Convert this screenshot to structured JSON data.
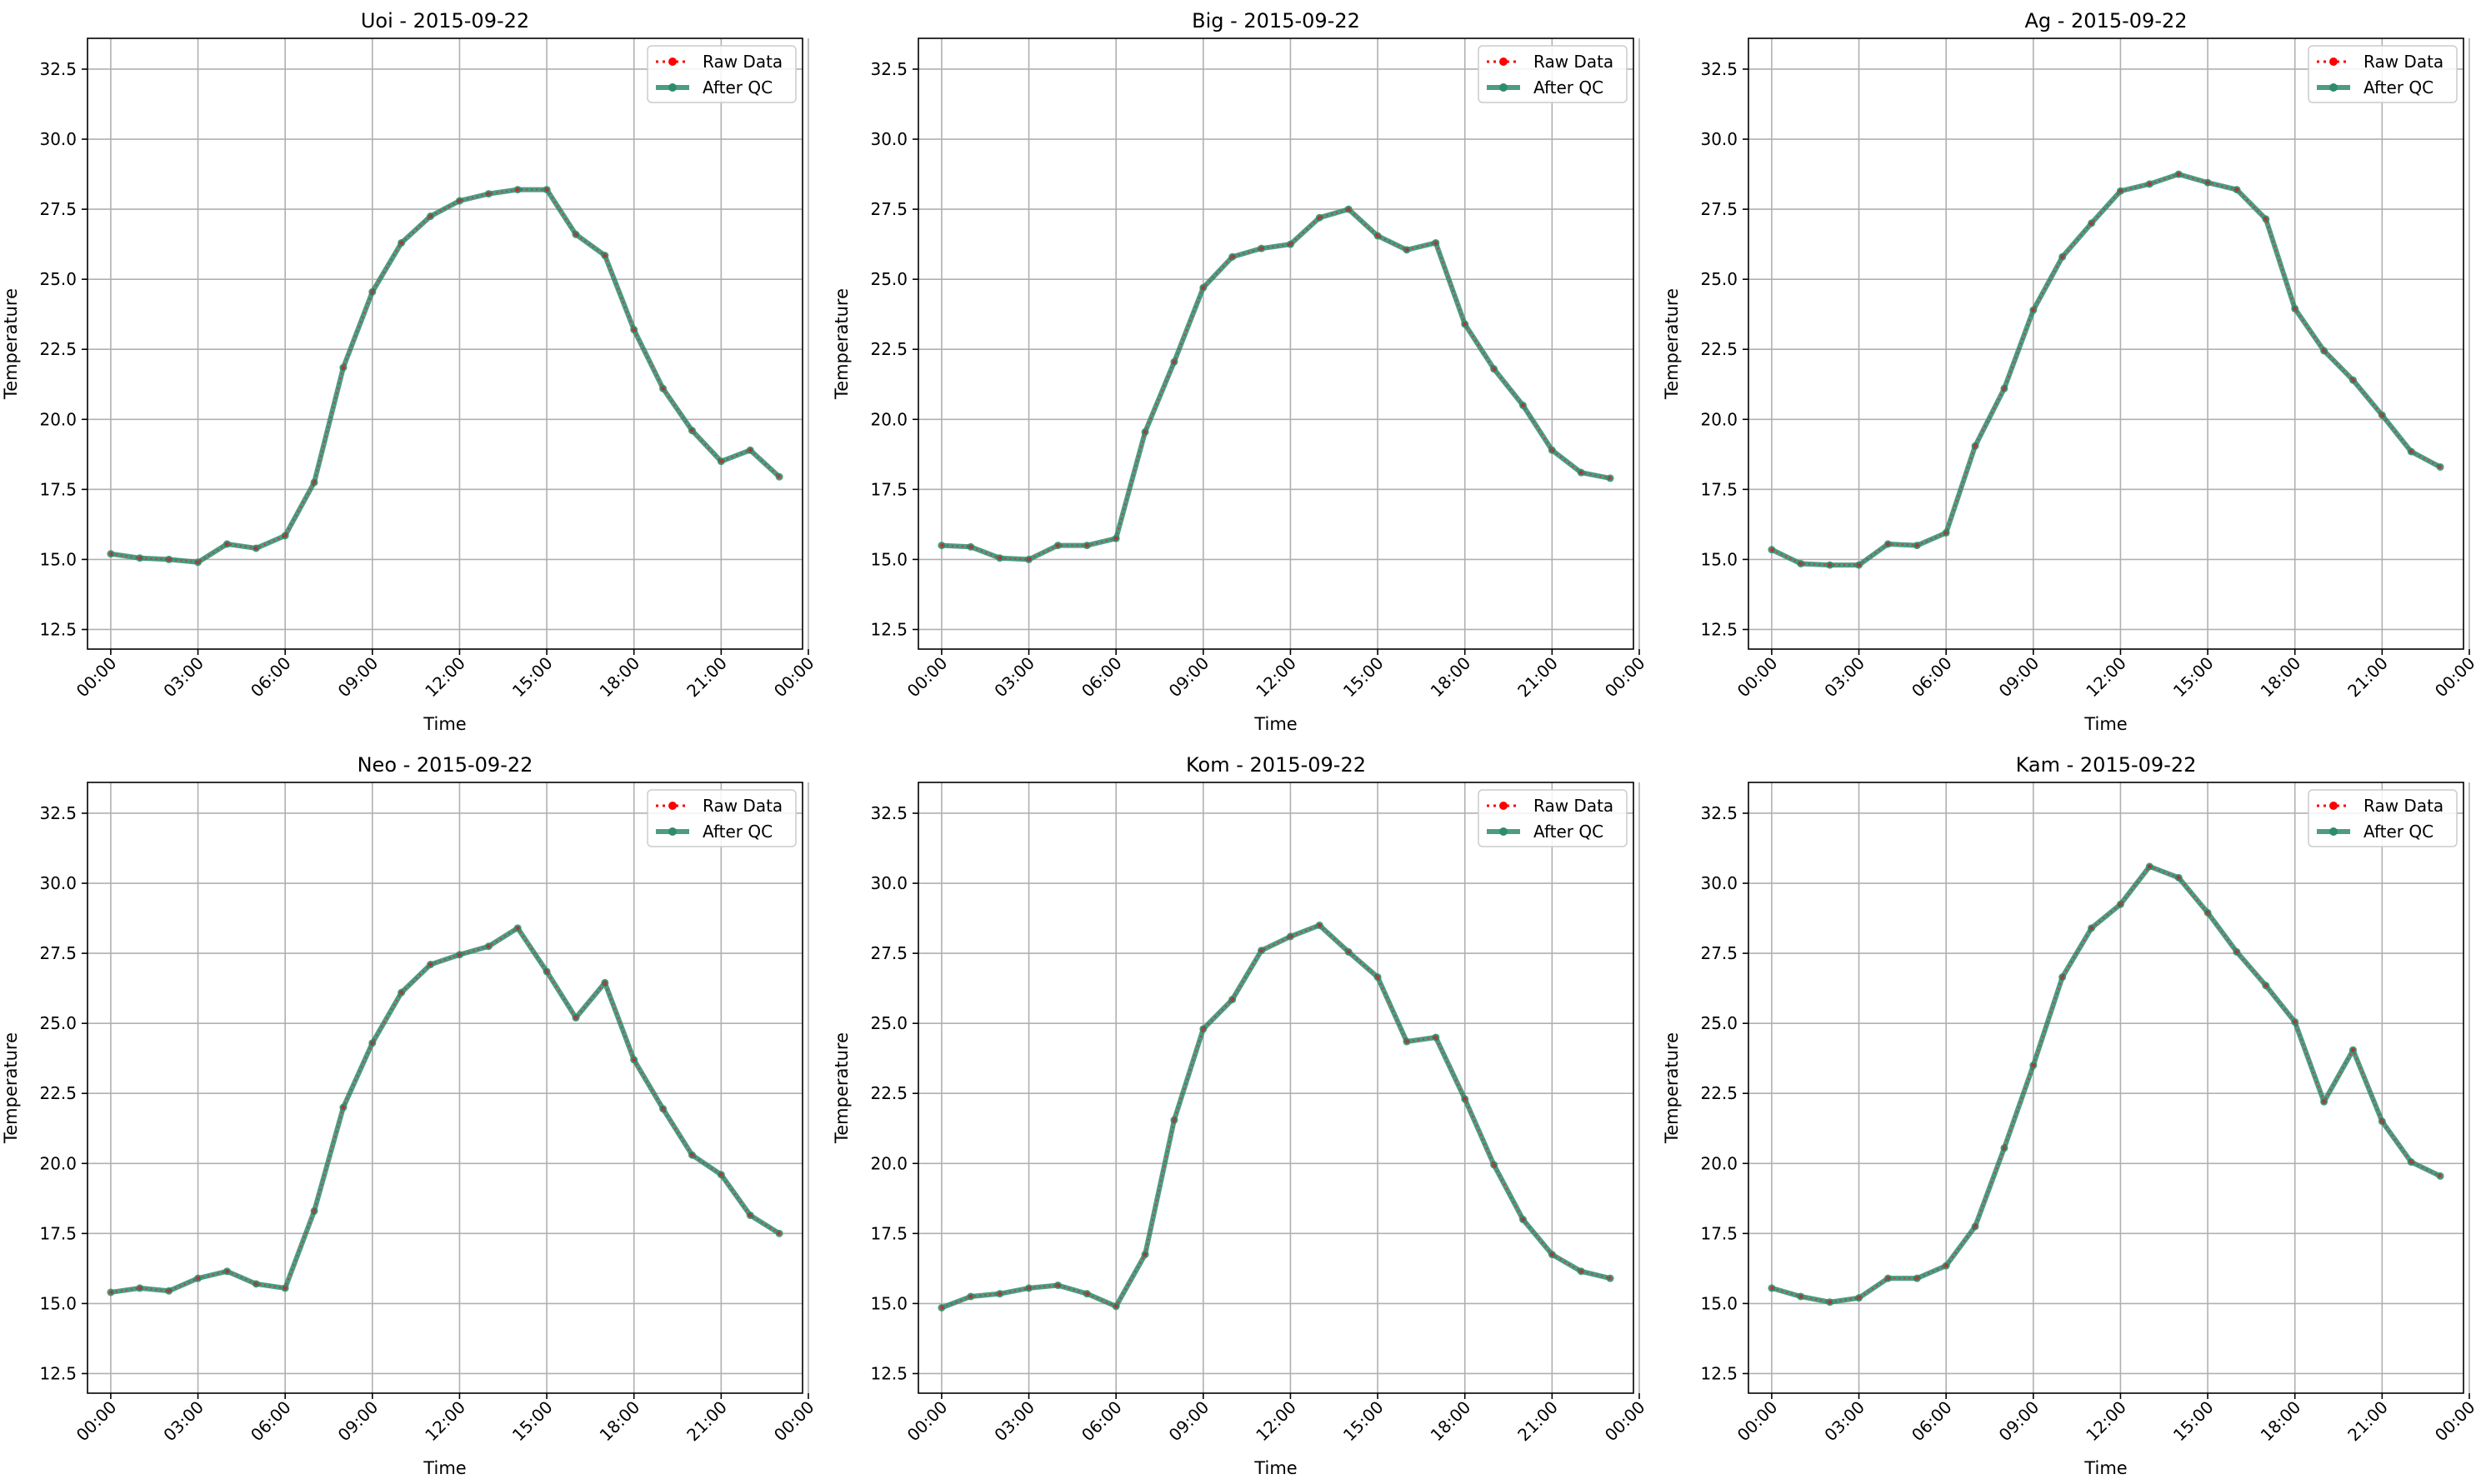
{
  "figure": {
    "colors": {
      "raw": "#ff0000",
      "qc": "#2e8b6e",
      "grid": "#b0b0b0",
      "axis": "#000000"
    }
  },
  "chart_data": [
    {
      "type": "line",
      "title": "Uoi - 2015-09-22",
      "xlabel": "Time",
      "ylabel": "Temperature",
      "ylim": [
        11.8,
        33.6
      ],
      "xlim": [
        -0.8,
        23.8
      ],
      "yticks": [
        12.5,
        15.0,
        17.5,
        20.0,
        22.5,
        25.0,
        27.5,
        30.0,
        32.5
      ],
      "xtick_hours": [
        0,
        3,
        6,
        9,
        12,
        15,
        18,
        21,
        24
      ],
      "xtick_labels": [
        "00:00",
        "03:00",
        "06:00",
        "09:00",
        "12:00",
        "15:00",
        "18:00",
        "21:00",
        "00:00"
      ],
      "grid": true,
      "legend": "top-right",
      "x": [
        "00:00",
        "01:00",
        "02:00",
        "03:00",
        "04:00",
        "05:00",
        "06:00",
        "07:00",
        "08:00",
        "09:00",
        "10:00",
        "11:00",
        "12:00",
        "13:00",
        "14:00",
        "15:00",
        "16:00",
        "17:00",
        "18:00",
        "19:00",
        "20:00",
        "21:00",
        "22:00",
        "23:00"
      ],
      "series": [
        {
          "name": "Raw Data",
          "style": "dotted-red-markers",
          "values": [
            15.2,
            15.05,
            15.0,
            14.9,
            15.55,
            15.4,
            15.85,
            17.75,
            21.85,
            24.55,
            26.3,
            27.25,
            27.8,
            28.05,
            28.2,
            28.2,
            26.6,
            25.85,
            23.2,
            21.1,
            19.6,
            18.5,
            18.9,
            17.95
          ]
        },
        {
          "name": "After QC",
          "style": "solid-green-markers",
          "values": [
            15.2,
            15.05,
            15.0,
            14.9,
            15.55,
            15.4,
            15.85,
            17.75,
            21.85,
            24.55,
            26.3,
            27.25,
            27.8,
            28.05,
            28.2,
            28.2,
            26.6,
            25.85,
            23.2,
            21.1,
            19.6,
            18.5,
            18.9,
            17.95
          ]
        }
      ]
    },
    {
      "type": "line",
      "title": "Big - 2015-09-22",
      "xlabel": "Time",
      "ylabel": "Temperature",
      "ylim": [
        11.8,
        33.6
      ],
      "xlim": [
        -0.8,
        23.8
      ],
      "yticks": [
        12.5,
        15.0,
        17.5,
        20.0,
        22.5,
        25.0,
        27.5,
        30.0,
        32.5
      ],
      "xtick_hours": [
        0,
        3,
        6,
        9,
        12,
        15,
        18,
        21,
        24
      ],
      "xtick_labels": [
        "00:00",
        "03:00",
        "06:00",
        "09:00",
        "12:00",
        "15:00",
        "18:00",
        "21:00",
        "00:00"
      ],
      "grid": true,
      "legend": "top-right",
      "x": [
        "00:00",
        "01:00",
        "02:00",
        "03:00",
        "04:00",
        "05:00",
        "06:00",
        "07:00",
        "08:00",
        "09:00",
        "10:00",
        "11:00",
        "12:00",
        "13:00",
        "14:00",
        "15:00",
        "16:00",
        "17:00",
        "18:00",
        "19:00",
        "20:00",
        "21:00",
        "22:00",
        "23:00"
      ],
      "series": [
        {
          "name": "Raw Data",
          "style": "dotted-red-markers",
          "values": [
            15.5,
            15.45,
            15.05,
            15.0,
            15.5,
            15.5,
            15.75,
            19.55,
            22.05,
            24.7,
            25.8,
            26.1,
            26.25,
            27.2,
            27.5,
            26.55,
            26.05,
            26.3,
            23.4,
            21.8,
            20.5,
            18.9,
            18.1,
            17.9
          ]
        },
        {
          "name": "After QC",
          "style": "solid-green-markers",
          "values": [
            15.5,
            15.45,
            15.05,
            15.0,
            15.5,
            15.5,
            15.75,
            19.55,
            22.05,
            24.7,
            25.8,
            26.1,
            26.25,
            27.2,
            27.5,
            26.55,
            26.05,
            26.3,
            23.4,
            21.8,
            20.5,
            18.9,
            18.1,
            17.9
          ]
        }
      ]
    },
    {
      "type": "line",
      "title": "Ag - 2015-09-22",
      "xlabel": "Time",
      "ylabel": "Temperature",
      "ylim": [
        11.8,
        33.6
      ],
      "xlim": [
        -0.8,
        23.8
      ],
      "yticks": [
        12.5,
        15.0,
        17.5,
        20.0,
        22.5,
        25.0,
        27.5,
        30.0,
        32.5
      ],
      "xtick_hours": [
        0,
        3,
        6,
        9,
        12,
        15,
        18,
        21,
        24
      ],
      "xtick_labels": [
        "00:00",
        "03:00",
        "06:00",
        "09:00",
        "12:00",
        "15:00",
        "18:00",
        "21:00",
        "00:00"
      ],
      "grid": true,
      "legend": "top-right",
      "x": [
        "00:00",
        "01:00",
        "02:00",
        "03:00",
        "04:00",
        "05:00",
        "06:00",
        "07:00",
        "08:00",
        "09:00",
        "10:00",
        "11:00",
        "12:00",
        "13:00",
        "14:00",
        "15:00",
        "16:00",
        "17:00",
        "18:00",
        "19:00",
        "20:00",
        "21:00",
        "22:00",
        "23:00"
      ],
      "series": [
        {
          "name": "Raw Data",
          "style": "dotted-red-markers",
          "values": [
            15.35,
            14.85,
            14.8,
            14.8,
            15.55,
            15.5,
            15.95,
            19.05,
            21.1,
            23.9,
            25.8,
            27.0,
            28.15,
            28.4,
            28.75,
            28.45,
            28.2,
            27.15,
            23.95,
            22.45,
            21.4,
            20.15,
            18.85,
            18.3
          ]
        },
        {
          "name": "After QC",
          "style": "solid-green-markers",
          "values": [
            15.35,
            14.85,
            14.8,
            14.8,
            15.55,
            15.5,
            15.95,
            19.05,
            21.1,
            23.9,
            25.8,
            27.0,
            28.15,
            28.4,
            28.75,
            28.45,
            28.2,
            27.15,
            23.95,
            22.45,
            21.4,
            20.15,
            18.85,
            18.3
          ]
        }
      ]
    },
    {
      "type": "line",
      "title": "Neo - 2015-09-22",
      "xlabel": "Time",
      "ylabel": "Temperature",
      "ylim": [
        11.8,
        33.6
      ],
      "xlim": [
        -0.8,
        23.8
      ],
      "yticks": [
        12.5,
        15.0,
        17.5,
        20.0,
        22.5,
        25.0,
        27.5,
        30.0,
        32.5
      ],
      "xtick_hours": [
        0,
        3,
        6,
        9,
        12,
        15,
        18,
        21,
        24
      ],
      "xtick_labels": [
        "00:00",
        "03:00",
        "06:00",
        "09:00",
        "12:00",
        "15:00",
        "18:00",
        "21:00",
        "00:00"
      ],
      "grid": true,
      "legend": "top-right",
      "x": [
        "00:00",
        "01:00",
        "02:00",
        "03:00",
        "04:00",
        "05:00",
        "06:00",
        "07:00",
        "08:00",
        "09:00",
        "10:00",
        "11:00",
        "12:00",
        "13:00",
        "14:00",
        "15:00",
        "16:00",
        "17:00",
        "18:00",
        "19:00",
        "20:00",
        "21:00",
        "22:00",
        "23:00"
      ],
      "series": [
        {
          "name": "Raw Data",
          "style": "dotted-red-markers",
          "values": [
            15.4,
            15.55,
            15.45,
            15.9,
            16.15,
            15.7,
            15.55,
            18.3,
            22.0,
            24.3,
            26.1,
            27.1,
            27.45,
            27.75,
            28.4,
            26.85,
            25.2,
            26.45,
            23.7,
            21.95,
            20.3,
            19.6,
            18.15,
            17.5
          ]
        },
        {
          "name": "After QC",
          "style": "solid-green-markers",
          "values": [
            15.4,
            15.55,
            15.45,
            15.9,
            16.15,
            15.7,
            15.55,
            18.3,
            22.0,
            24.3,
            26.1,
            27.1,
            27.45,
            27.75,
            28.4,
            26.85,
            25.2,
            26.45,
            23.7,
            21.95,
            20.3,
            19.6,
            18.15,
            17.5
          ]
        }
      ]
    },
    {
      "type": "line",
      "title": "Kom - 2015-09-22",
      "xlabel": "Time",
      "ylabel": "Temperature",
      "ylim": [
        11.8,
        33.6
      ],
      "xlim": [
        -0.8,
        23.8
      ],
      "yticks": [
        12.5,
        15.0,
        17.5,
        20.0,
        22.5,
        25.0,
        27.5,
        30.0,
        32.5
      ],
      "xtick_hours": [
        0,
        3,
        6,
        9,
        12,
        15,
        18,
        21,
        24
      ],
      "xtick_labels": [
        "00:00",
        "03:00",
        "06:00",
        "09:00",
        "12:00",
        "15:00",
        "18:00",
        "21:00",
        "00:00"
      ],
      "grid": true,
      "legend": "top-right",
      "x": [
        "00:00",
        "01:00",
        "02:00",
        "03:00",
        "04:00",
        "05:00",
        "06:00",
        "07:00",
        "08:00",
        "09:00",
        "10:00",
        "11:00",
        "12:00",
        "13:00",
        "14:00",
        "15:00",
        "16:00",
        "17:00",
        "18:00",
        "19:00",
        "20:00",
        "21:00",
        "22:00",
        "23:00"
      ],
      "series": [
        {
          "name": "Raw Data",
          "style": "dotted-red-markers",
          "values": [
            14.85,
            15.25,
            15.35,
            15.55,
            15.65,
            15.35,
            14.9,
            16.75,
            21.55,
            24.8,
            25.85,
            27.6,
            28.1,
            28.5,
            27.55,
            26.65,
            24.35,
            24.5,
            22.3,
            19.95,
            18.0,
            16.75,
            16.15,
            15.9
          ]
        },
        {
          "name": "After QC",
          "style": "solid-green-markers",
          "values": [
            14.85,
            15.25,
            15.35,
            15.55,
            15.65,
            15.35,
            14.9,
            16.75,
            21.55,
            24.8,
            25.85,
            27.6,
            28.1,
            28.5,
            27.55,
            26.65,
            24.35,
            24.5,
            22.3,
            19.95,
            18.0,
            16.75,
            16.15,
            15.9
          ]
        }
      ]
    },
    {
      "type": "line",
      "title": "Kam - 2015-09-22",
      "xlabel": "Time",
      "ylabel": "Temperature",
      "ylim": [
        11.8,
        33.6
      ],
      "xlim": [
        -0.8,
        23.8
      ],
      "yticks": [
        12.5,
        15.0,
        17.5,
        20.0,
        22.5,
        25.0,
        27.5,
        30.0,
        32.5
      ],
      "xtick_hours": [
        0,
        3,
        6,
        9,
        12,
        15,
        18,
        21,
        24
      ],
      "xtick_labels": [
        "00:00",
        "03:00",
        "06:00",
        "09:00",
        "12:00",
        "15:00",
        "18:00",
        "21:00",
        "00:00"
      ],
      "grid": true,
      "legend": "top-right",
      "x": [
        "00:00",
        "01:00",
        "02:00",
        "03:00",
        "04:00",
        "05:00",
        "06:00",
        "07:00",
        "08:00",
        "09:00",
        "10:00",
        "11:00",
        "12:00",
        "13:00",
        "14:00",
        "15:00",
        "16:00",
        "17:00",
        "18:00",
        "19:00",
        "20:00",
        "21:00",
        "22:00",
        "23:00"
      ],
      "series": [
        {
          "name": "Raw Data",
          "style": "dotted-red-markers",
          "values": [
            15.55,
            15.25,
            15.05,
            15.2,
            15.9,
            15.9,
            16.35,
            17.75,
            20.55,
            23.5,
            26.65,
            28.4,
            29.25,
            30.6,
            30.2,
            28.95,
            27.55,
            26.35,
            25.05,
            22.2,
            24.05,
            21.5,
            20.05,
            19.55
          ]
        },
        {
          "name": "After QC",
          "style": "solid-green-markers",
          "values": [
            15.55,
            15.25,
            15.05,
            15.2,
            15.9,
            15.9,
            16.35,
            17.75,
            20.55,
            23.5,
            26.65,
            28.4,
            29.25,
            30.6,
            30.2,
            28.95,
            27.55,
            26.35,
            25.05,
            22.2,
            24.05,
            21.5,
            20.05,
            19.55
          ]
        }
      ]
    }
  ]
}
